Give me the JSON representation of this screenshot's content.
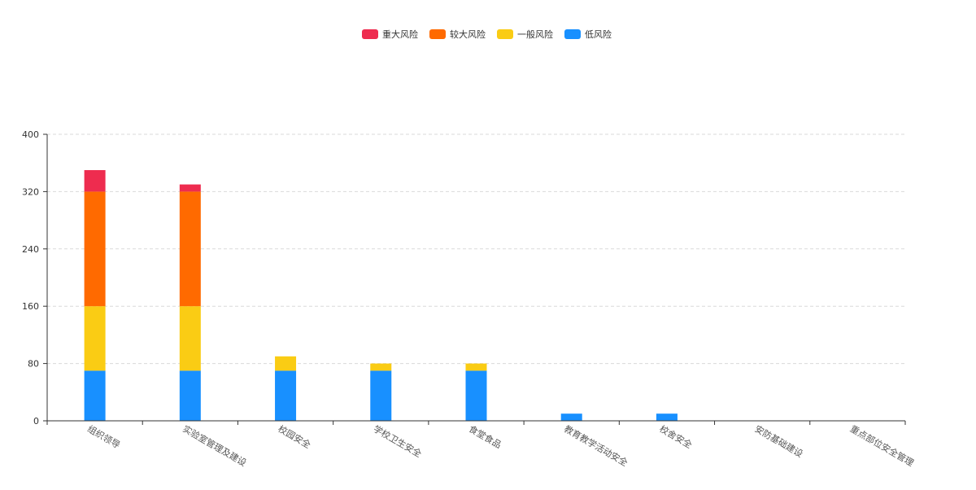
{
  "chart_data": {
    "type": "bar",
    "stacked": true,
    "categories": [
      "组织领导",
      "实验室管理及建设",
      "校园安全",
      "学校卫生安全",
      "食堂食品",
      "教育教学活动安全",
      "校舍安全",
      "安防基础建设",
      "重点部位安全管理"
    ],
    "series": [
      {
        "name": "低风险",
        "color": "#1890ff",
        "values": [
          70,
          70,
          70,
          70,
          70,
          10,
          10,
          0,
          0
        ]
      },
      {
        "name": "一般风险",
        "color": "#facc14",
        "values": [
          90,
          90,
          20,
          10,
          10,
          0,
          0,
          0,
          0
        ]
      },
      {
        "name": "较大风险",
        "color": "#ff6a00",
        "values": [
          160,
          160,
          0,
          0,
          0,
          0,
          0,
          0,
          0
        ]
      },
      {
        "name": "重大风险",
        "color": "#ee2c4f",
        "values": [
          30,
          10,
          0,
          0,
          0,
          0,
          0,
          0,
          0
        ]
      }
    ],
    "legend_order": [
      "重大风险",
      "较大风险",
      "一般风险",
      "低风险"
    ],
    "ylim": [
      0,
      400
    ],
    "yticks": [
      0,
      80,
      160,
      240,
      320,
      400
    ],
    "grid": true,
    "legend_position": "top-center",
    "title": "",
    "xlabel": "",
    "ylabel": ""
  }
}
